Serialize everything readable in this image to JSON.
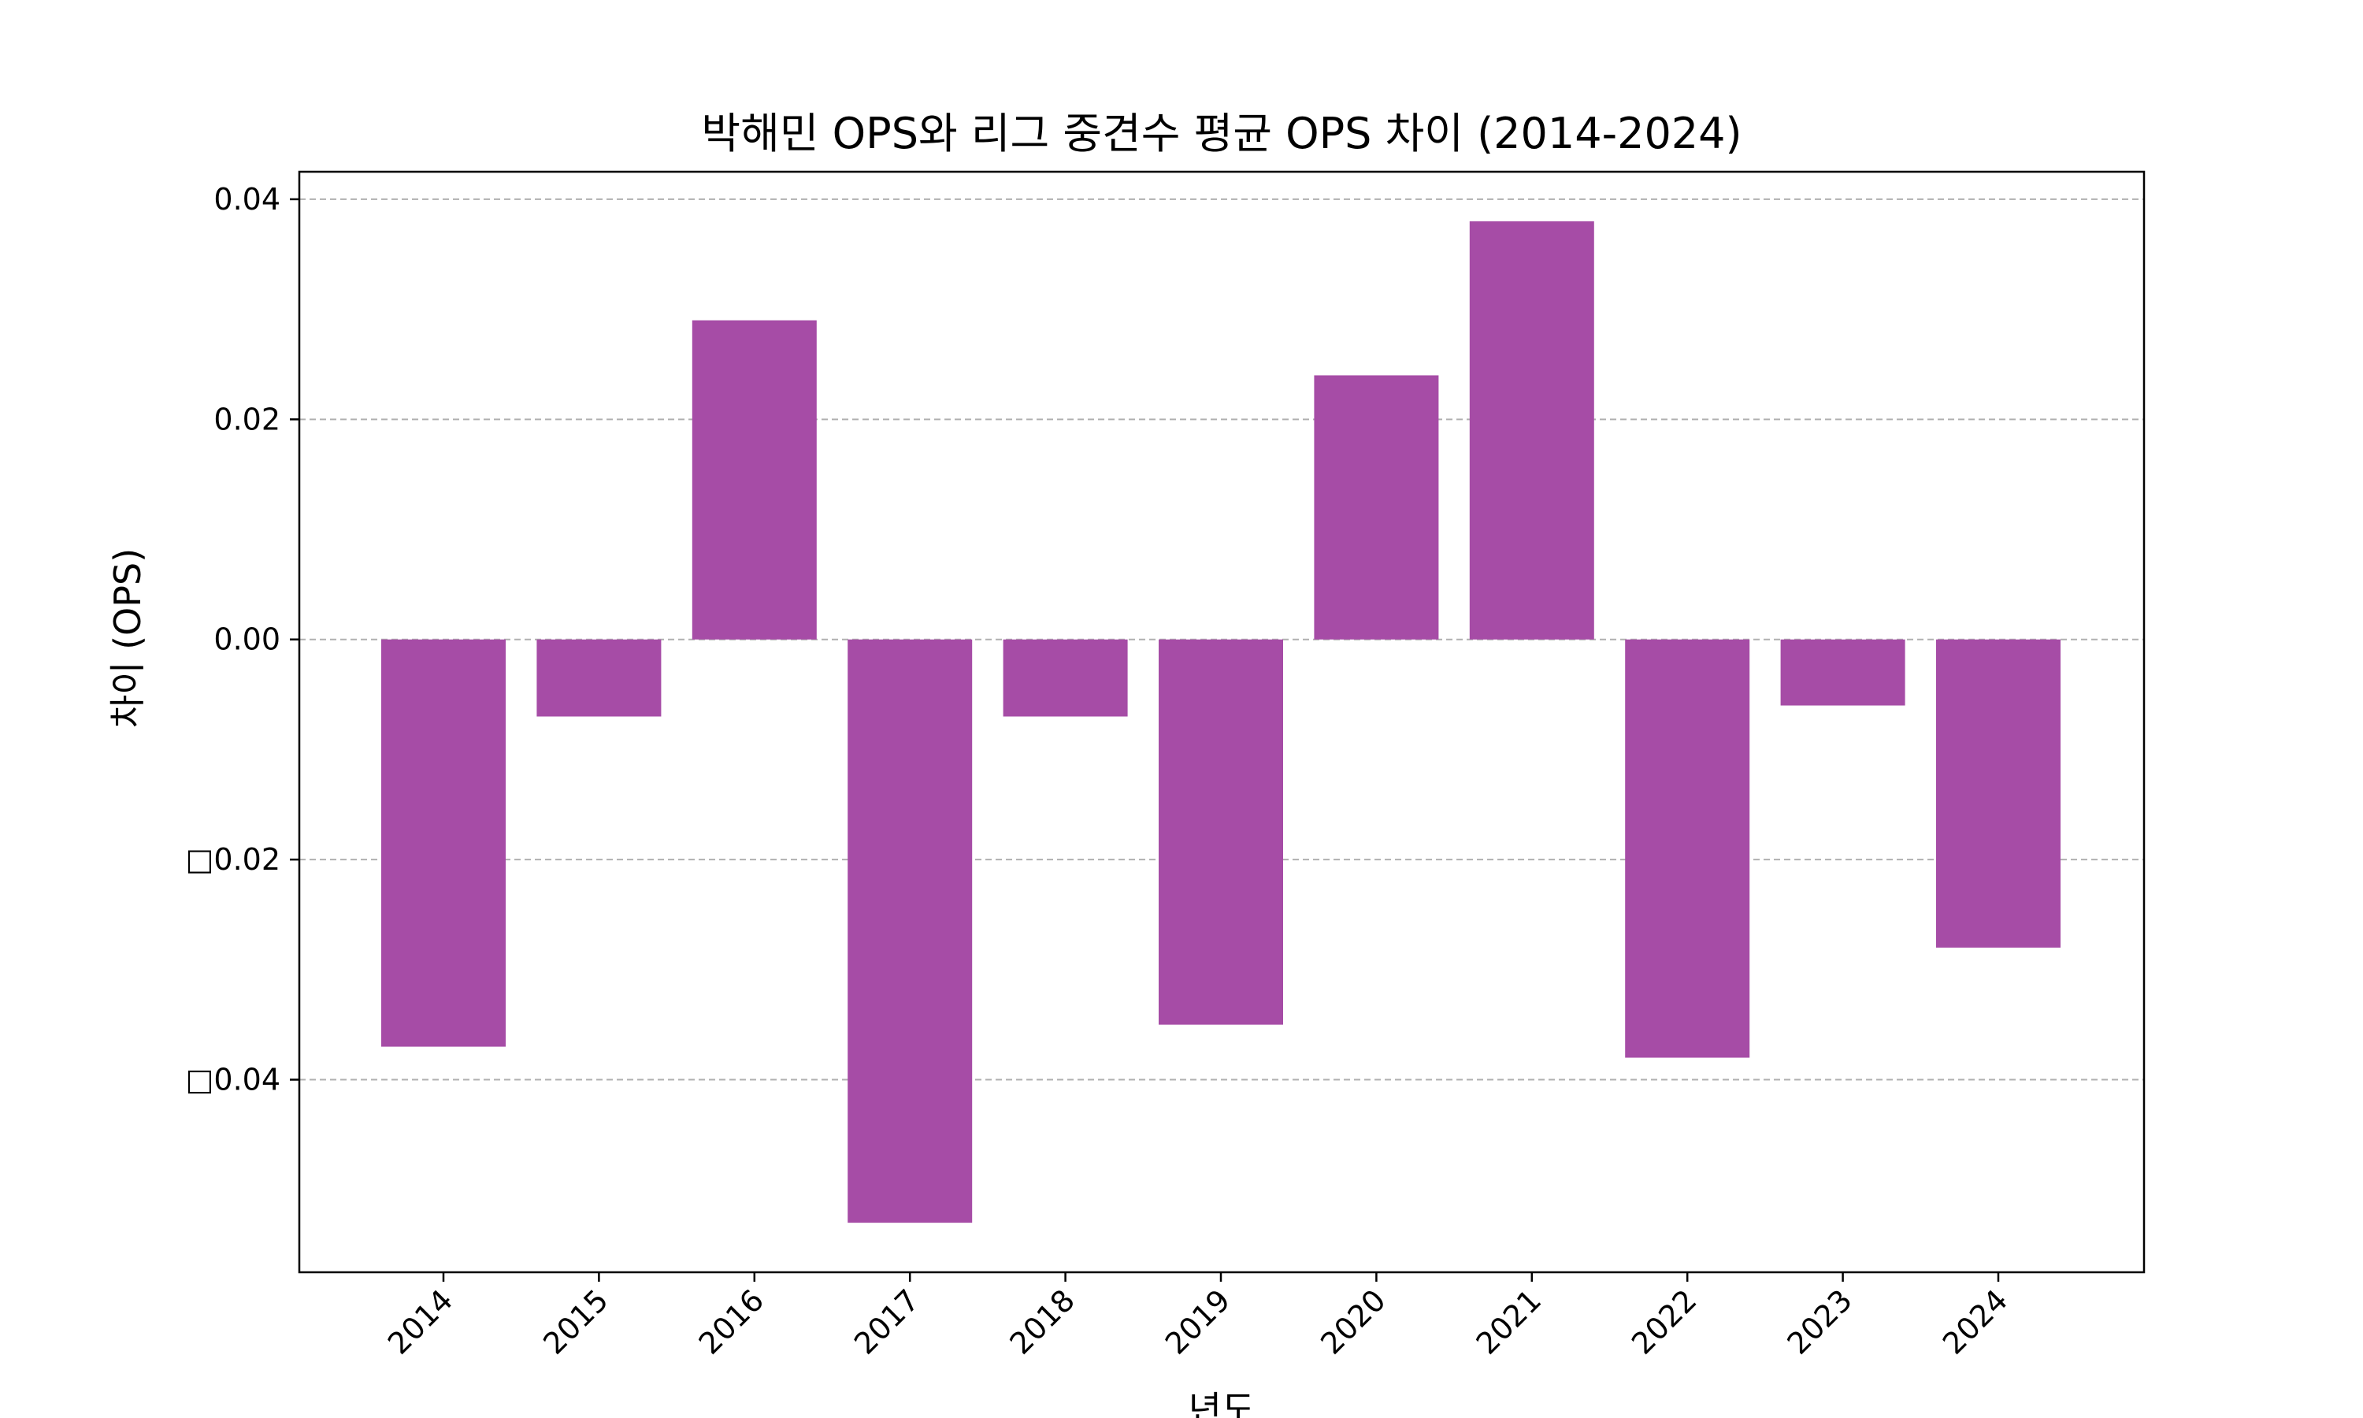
{
  "chart_data": {
    "type": "bar",
    "title": "박해민 OPS와 리그 중견수 평균 OPS 차이 (2014-2024)",
    "xlabel": "년도",
    "ylabel": "차이 (OPS)",
    "categories": [
      "2014",
      "2015",
      "2016",
      "2017",
      "2018",
      "2019",
      "2020",
      "2021",
      "2022",
      "2023",
      "2024"
    ],
    "values": [
      -0.037,
      -0.007,
      0.029,
      -0.053,
      -0.007,
      -0.035,
      0.024,
      0.038,
      -0.038,
      -0.006,
      -0.028
    ],
    "ylim": [
      -0.0575,
      0.0425
    ],
    "yticks": [
      0.04,
      0.02,
      0.0,
      -0.02,
      -0.04
    ],
    "ytick_labels": [
      "0.04",
      "0.02",
      "0.00",
      "□0.02",
      "□0.04"
    ],
    "grid": "y-dashed",
    "legend": "none",
    "bar_color": "#a64ca6",
    "grid_color": "#b0b0b0"
  }
}
